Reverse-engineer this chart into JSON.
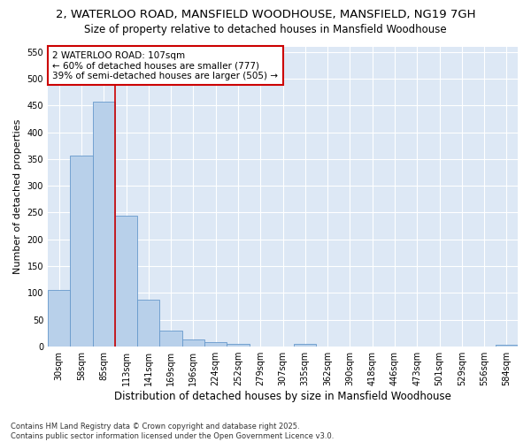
{
  "title": "2, WATERLOO ROAD, MANSFIELD WOODHOUSE, MANSFIELD, NG19 7GH",
  "subtitle": "Size of property relative to detached houses in Mansfield Woodhouse",
  "xlabel": "Distribution of detached houses by size in Mansfield Woodhouse",
  "ylabel": "Number of detached properties",
  "categories": [
    "30sqm",
    "58sqm",
    "85sqm",
    "113sqm",
    "141sqm",
    "169sqm",
    "196sqm",
    "224sqm",
    "252sqm",
    "279sqm",
    "307sqm",
    "335sqm",
    "362sqm",
    "390sqm",
    "418sqm",
    "446sqm",
    "473sqm",
    "501sqm",
    "529sqm",
    "556sqm",
    "584sqm"
  ],
  "values": [
    105,
    357,
    457,
    245,
    88,
    30,
    13,
    9,
    5,
    0,
    0,
    5,
    0,
    0,
    0,
    0,
    0,
    0,
    0,
    0,
    4
  ],
  "bar_color": "#b8d0ea",
  "bar_edge_color": "#6699cc",
  "vline_x_index": 2.5,
  "vline_color": "#cc0000",
  "annotation_text": "2 WATERLOO ROAD: 107sqm\n← 60% of detached houses are smaller (777)\n39% of semi-detached houses are larger (505) →",
  "annotation_box_color": "white",
  "annotation_box_edge": "#cc0000",
  "ylim": [
    0,
    560
  ],
  "yticks": [
    0,
    50,
    100,
    150,
    200,
    250,
    300,
    350,
    400,
    450,
    500,
    550
  ],
  "background_color": "#dde8f5",
  "footer": "Contains HM Land Registry data © Crown copyright and database right 2025.\nContains public sector information licensed under the Open Government Licence v3.0.",
  "title_fontsize": 9.5,
  "subtitle_fontsize": 8.5,
  "xlabel_fontsize": 8.5,
  "ylabel_fontsize": 8,
  "tick_fontsize": 7,
  "footer_fontsize": 6,
  "ann_fontsize": 7.5
}
